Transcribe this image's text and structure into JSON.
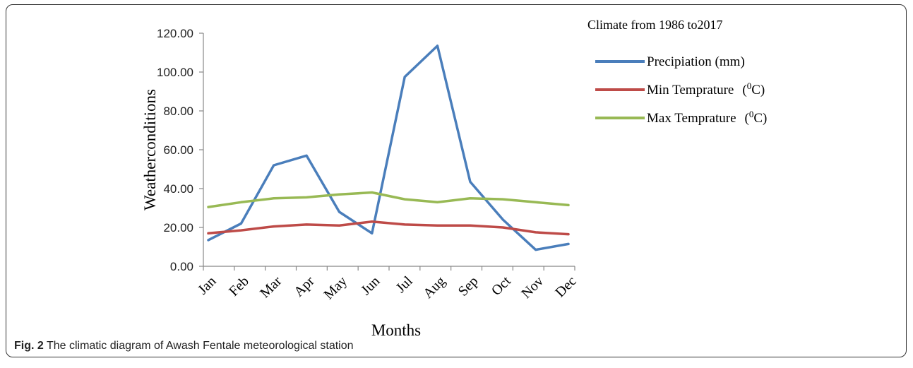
{
  "chart_data": {
    "type": "line",
    "title": "Climate from 1986 to2017",
    "xlabel": "Months",
    "ylabel": "Weatherconditions",
    "categories": [
      "Jan",
      "Feb",
      "Mar",
      "Apr",
      "May",
      "Jun",
      "Jul",
      "Aug",
      "Sep",
      "Oct",
      "Nov",
      "Dec"
    ],
    "ylim": [
      0,
      120
    ],
    "y_ticks": [
      "0.00",
      "20.00",
      "40.00",
      "60.00",
      "80.00",
      "100.00",
      "120.00"
    ],
    "grid": false,
    "legend_position": "top-right",
    "series": [
      {
        "name": "Precipiation (mm)",
        "color": "#4a7ebb",
        "values": [
          13.5,
          22.0,
          52.0,
          57.0,
          28.0,
          17.0,
          97.5,
          113.5,
          43.5,
          24.0,
          8.5,
          11.5
        ]
      },
      {
        "name": "Min Temprature",
        "unit_base": "C",
        "unit_sup": "0",
        "color": "#be4b48",
        "values": [
          17.0,
          18.5,
          20.5,
          21.5,
          21.0,
          23.0,
          21.5,
          21.0,
          21.0,
          20.0,
          17.5,
          16.5
        ]
      },
      {
        "name": "Max Temprature",
        "unit_base": "C",
        "unit_sup": "0",
        "color": "#98b954",
        "values": [
          30.5,
          33.0,
          35.0,
          35.5,
          37.0,
          38.0,
          34.5,
          33.0,
          35.0,
          34.5,
          33.0,
          31.5
        ]
      }
    ]
  },
  "caption": {
    "label": "Fig. 2",
    "text": "The climatic diagram of Awash Fentale meteorological station"
  }
}
